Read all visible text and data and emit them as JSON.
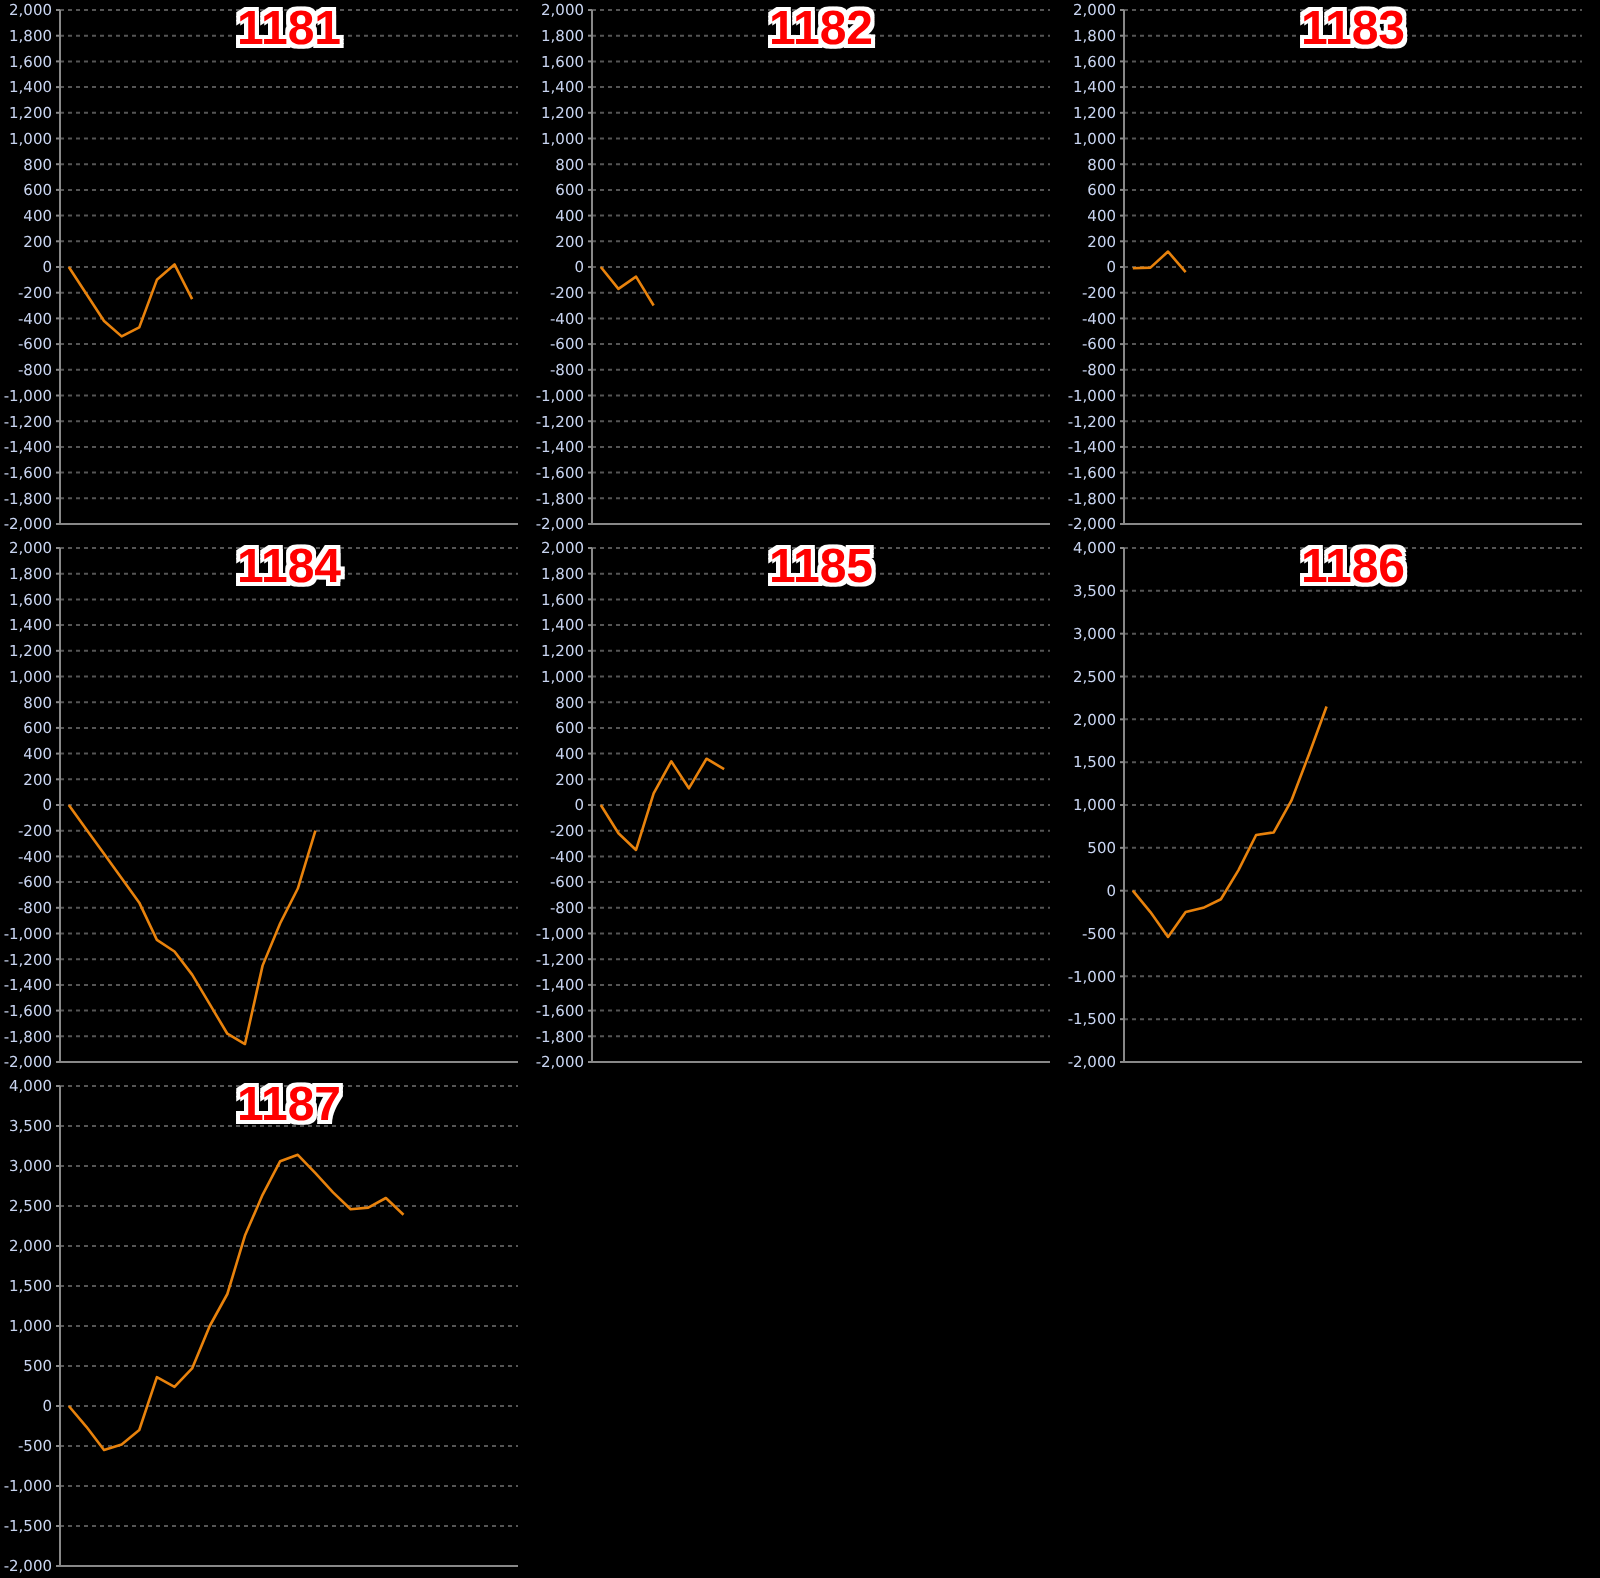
{
  "chart_data": [
    {
      "type": "line",
      "title": "1181",
      "color": "#e8820c",
      "categories": [
        null,
        null,
        null,
        null,
        null,
        null,
        null,
        null,
        null,
        null,
        null,
        null,
        null,
        null,
        null,
        null,
        null,
        null,
        null,
        null,
        null,
        null,
        null,
        null,
        null,
        null
      ],
      "values": [
        0,
        -210,
        -420,
        -540,
        -470,
        -100,
        20,
        -250,
        null,
        null,
        null,
        null,
        null,
        null,
        null,
        null,
        null,
        null,
        null,
        null,
        null,
        null,
        null,
        null,
        null,
        null
      ],
      "ylim": [
        -2000,
        2000
      ],
      "yticks": [
        {
          "value": -2000,
          "label": "-2,000"
        },
        {
          "value": -1800,
          "label": "-1,800"
        },
        {
          "value": -1600,
          "label": "-1,600"
        },
        {
          "value": -1400,
          "label": "-1,400"
        },
        {
          "value": -1200,
          "label": "-1,200"
        },
        {
          "value": -1000,
          "label": "-1,000"
        },
        -800,
        -600,
        -400,
        -200,
        0,
        200,
        400,
        600,
        800,
        {
          "value": 1000,
          "label": "1,000"
        },
        {
          "value": 1200,
          "label": "1,200"
        },
        {
          "value": 1400,
          "label": "1,400"
        },
        {
          "value": 1600,
          "label": "1,600"
        },
        {
          "value": 1800,
          "label": "1,800"
        },
        {
          "value": 2000,
          "label": "2,000"
        }
      ],
      "grid": "y",
      "tick_labels": "y"
    },
    {
      "type": "line",
      "title": "1182",
      "color": "#e8820c",
      "categories": [
        null,
        null,
        null,
        null,
        null,
        null,
        null,
        null,
        null,
        null,
        null,
        null,
        null,
        null,
        null,
        null,
        null,
        null,
        null,
        null,
        null,
        null,
        null,
        null,
        null,
        null
      ],
      "values": [
        0,
        -170,
        -75,
        -300,
        null,
        null,
        null,
        null,
        null,
        null,
        null,
        null,
        null,
        null,
        null,
        null,
        null,
        null,
        null,
        null,
        null,
        null,
        null,
        null,
        null,
        null
      ],
      "ylim": [
        -2000,
        2000
      ],
      "yticks": [
        {
          "value": -2000,
          "label": "-2,000"
        },
        {
          "value": -1800,
          "label": "-1,800"
        },
        {
          "value": -1600,
          "label": "-1,600"
        },
        {
          "value": -1400,
          "label": "-1,400"
        },
        {
          "value": -1200,
          "label": "-1,200"
        },
        {
          "value": -1000,
          "label": "-1,000"
        },
        -800,
        -600,
        -400,
        -200,
        0,
        200,
        400,
        600,
        800,
        {
          "value": 1000,
          "label": "1,000"
        },
        {
          "value": 1200,
          "label": "1,200"
        },
        {
          "value": 1400,
          "label": "1,400"
        },
        {
          "value": 1600,
          "label": "1,600"
        },
        {
          "value": 1800,
          "label": "1,800"
        },
        {
          "value": 2000,
          "label": "2,000"
        }
      ],
      "grid": "y",
      "tick_labels": "y"
    },
    {
      "type": "line",
      "title": "1183",
      "color": "#e8820c",
      "categories": [
        null,
        null,
        null,
        null,
        null,
        null,
        null,
        null,
        null,
        null,
        null,
        null,
        null,
        null,
        null,
        null,
        null,
        null,
        null,
        null,
        null,
        null,
        null,
        null,
        null,
        null
      ],
      "values": [
        -10,
        -5,
        120,
        -40,
        null,
        null,
        null,
        null,
        null,
        null,
        null,
        null,
        null,
        null,
        null,
        null,
        null,
        null,
        null,
        null,
        null,
        null,
        null,
        null,
        null,
        null
      ],
      "ylim": [
        -2000,
        2000
      ],
      "yticks": [
        {
          "value": -2000,
          "label": "-2,000"
        },
        {
          "value": -1800,
          "label": "-1,800"
        },
        {
          "value": -1600,
          "label": "-1,600"
        },
        {
          "value": -1400,
          "label": "-1,400"
        },
        {
          "value": -1200,
          "label": "-1,200"
        },
        {
          "value": -1000,
          "label": "-1,000"
        },
        -800,
        -600,
        -400,
        -200,
        0,
        200,
        400,
        600,
        800,
        {
          "value": 1000,
          "label": "1,000"
        },
        {
          "value": 1200,
          "label": "1,200"
        },
        {
          "value": 1400,
          "label": "1,400"
        },
        {
          "value": 1600,
          "label": "1,600"
        },
        {
          "value": 1800,
          "label": "1,800"
        },
        {
          "value": 2000,
          "label": "2,000"
        }
      ],
      "grid": "y",
      "tick_labels": "y"
    },
    {
      "type": "line",
      "title": "1184",
      "color": "#e8820c",
      "categories": [
        null,
        null,
        null,
        null,
        null,
        null,
        null,
        null,
        null,
        null,
        null,
        null,
        null,
        null,
        null,
        null,
        null,
        null,
        null,
        null,
        null,
        null,
        null,
        null,
        null,
        null
      ],
      "values": [
        0,
        -190,
        -380,
        -570,
        -760,
        -1050,
        -1140,
        -1320,
        -1550,
        -1780,
        -1860,
        -1250,
        -920,
        -650,
        -200,
        null,
        null,
        null,
        null,
        null,
        null,
        null,
        null,
        null,
        null,
        null
      ],
      "ylim": [
        -2000,
        2000
      ],
      "yticks": [
        {
          "value": -2000,
          "label": "-2,000"
        },
        {
          "value": -1800,
          "label": "-1,800"
        },
        {
          "value": -1600,
          "label": "-1,600"
        },
        {
          "value": -1400,
          "label": "-1,400"
        },
        {
          "value": -1200,
          "label": "-1,200"
        },
        {
          "value": -1000,
          "label": "-1,000"
        },
        -800,
        -600,
        -400,
        -200,
        0,
        200,
        400,
        600,
        800,
        {
          "value": 1000,
          "label": "1,000"
        },
        {
          "value": 1200,
          "label": "1,200"
        },
        {
          "value": 1400,
          "label": "1,400"
        },
        {
          "value": 1600,
          "label": "1,600"
        },
        {
          "value": 1800,
          "label": "1,800"
        },
        {
          "value": 2000,
          "label": "2,000"
        }
      ],
      "grid": "y",
      "tick_labels": "y"
    },
    {
      "type": "line",
      "title": "1185",
      "color": "#e8820c",
      "categories": [
        null,
        null,
        null,
        null,
        null,
        null,
        null,
        null,
        null,
        null,
        null,
        null,
        null,
        null,
        null,
        null,
        null,
        null,
        null,
        null,
        null,
        null,
        null,
        null,
        null,
        null
      ],
      "values": [
        0,
        -220,
        -350,
        90,
        340,
        130,
        360,
        280,
        null,
        null,
        null,
        null,
        null,
        null,
        null,
        null,
        null,
        null,
        null,
        null,
        null,
        null,
        null,
        null,
        null,
        null
      ],
      "ylim": [
        -2000,
        2000
      ],
      "yticks": [
        {
          "value": -2000,
          "label": "-2,000"
        },
        {
          "value": -1800,
          "label": "-1,800"
        },
        {
          "value": -1600,
          "label": "-1,600"
        },
        {
          "value": -1400,
          "label": "-1,400"
        },
        {
          "value": -1200,
          "label": "-1,200"
        },
        {
          "value": -1000,
          "label": "-1,000"
        },
        -800,
        -600,
        -400,
        -200,
        0,
        200,
        400,
        600,
        800,
        {
          "value": 1000,
          "label": "1,000"
        },
        {
          "value": 1200,
          "label": "1,200"
        },
        {
          "value": 1400,
          "label": "1,400"
        },
        {
          "value": 1600,
          "label": "1,600"
        },
        {
          "value": 1800,
          "label": "1,800"
        },
        {
          "value": 2000,
          "label": "2,000"
        }
      ],
      "grid": "y",
      "tick_labels": "y"
    },
    {
      "type": "line",
      "title": "1186",
      "color": "#e8820c",
      "categories": [
        null,
        null,
        null,
        null,
        null,
        null,
        null,
        null,
        null,
        null,
        null,
        null,
        null,
        null,
        null,
        null,
        null,
        null,
        null,
        null,
        null,
        null,
        null,
        null,
        null,
        null
      ],
      "values": [
        0,
        -250,
        -540,
        -250,
        -200,
        -100,
        240,
        650,
        680,
        1050,
        1590,
        2150,
        null,
        null,
        null,
        null,
        null,
        null,
        null,
        null,
        null,
        null,
        null,
        null,
        null,
        null
      ],
      "ylim": [
        -2000,
        4000
      ],
      "yticks": [
        {
          "value": -2000,
          "label": "-2,000"
        },
        {
          "value": -1500,
          "label": "-1,500"
        },
        {
          "value": -1000,
          "label": "-1,000"
        },
        -500,
        0,
        500,
        {
          "value": 1000,
          "label": "1,000"
        },
        {
          "value": 1500,
          "label": "1,500"
        },
        {
          "value": 2000,
          "label": "2,000"
        },
        {
          "value": 2500,
          "label": "2,500"
        },
        {
          "value": 3000,
          "label": "3,000"
        },
        {
          "value": 3500,
          "label": "3,500"
        },
        {
          "value": 4000,
          "label": "4,000"
        }
      ],
      "grid": "y",
      "tick_labels": "y"
    },
    {
      "type": "line",
      "title": "1187",
      "color": "#e8820c",
      "categories": [
        null,
        null,
        null,
        null,
        null,
        null,
        null,
        null,
        null,
        null,
        null,
        null,
        null,
        null,
        null,
        null,
        null,
        null,
        null,
        null,
        null,
        null,
        null,
        null,
        null,
        null
      ],
      "values": [
        0,
        -260,
        -550,
        -480,
        -300,
        360,
        240,
        470,
        1000,
        1400,
        2130,
        2640,
        3060,
        3140,
        2910,
        2670,
        2460,
        2480,
        2600,
        2390,
        null,
        null,
        null,
        null,
        null,
        null
      ],
      "ylim": [
        -2000,
        4000
      ],
      "yticks": [
        {
          "value": -2000,
          "label": "-2,000"
        },
        {
          "value": -1500,
          "label": "-1,500"
        },
        {
          "value": -1000,
          "label": "-1,000"
        },
        -500,
        0,
        500,
        {
          "value": 1000,
          "label": "1,000"
        },
        {
          "value": 1500,
          "label": "1,500"
        },
        {
          "value": 2000,
          "label": "2,000"
        },
        {
          "value": 2500,
          "label": "2,500"
        },
        {
          "value": 3000,
          "label": "3,000"
        },
        {
          "value": 3500,
          "label": "3,500"
        },
        {
          "value": 4000,
          "label": "4,000"
        }
      ],
      "grid": "y",
      "tick_labels": "y"
    }
  ]
}
